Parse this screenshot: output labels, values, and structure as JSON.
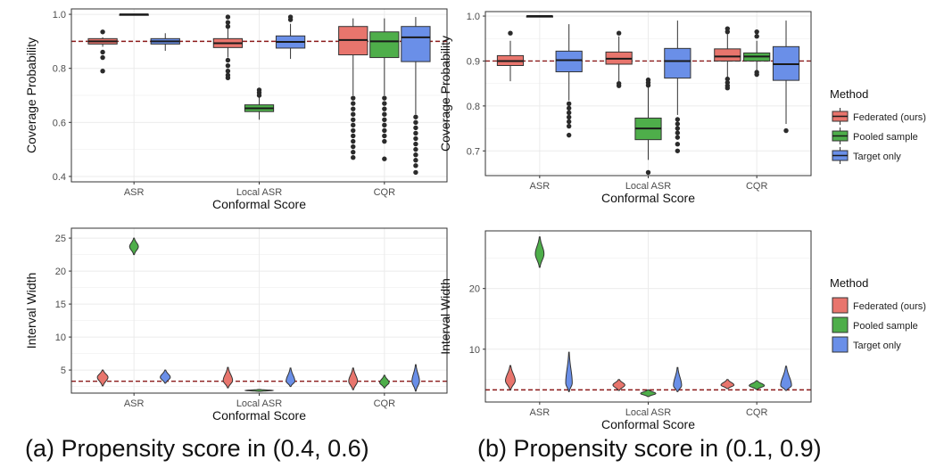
{
  "captions": {
    "a": "(a) Propensity score in (0.4, 0.6)",
    "b": "(b) Propensity score in (0.1, 0.9)"
  },
  "legend": {
    "title": "Method",
    "entries": [
      "Federated (ours)",
      "Pooled sample",
      "Target only"
    ],
    "colors": [
      "#E8756D",
      "#4EAE4A",
      "#6A8FE8"
    ]
  },
  "chart_data": [
    {
      "id": "a-coverage",
      "type": "box",
      "title": "",
      "xlabel": "Conformal Score",
      "ylabel": "Coverage Probability",
      "categories": [
        "ASR",
        "Local ASR",
        "CQR"
      ],
      "ylim": [
        0.38,
        1.02
      ],
      "yticks": [
        0.4,
        0.6,
        0.8,
        1.0
      ],
      "ytick_labels": [
        "0.4",
        "0.6",
        "0.8",
        "1.0"
      ],
      "reference_line": 0.9,
      "grid": true,
      "series": [
        {
          "name": "Federated (ours)",
          "boxes": [
            {
              "q1": 0.89,
              "median": 0.9,
              "q3": 0.91,
              "lo": 0.88,
              "hi": 0.915,
              "outliers": [
                0.935,
                0.86,
                0.84,
                0.79
              ]
            },
            {
              "q1": 0.877,
              "median": 0.893,
              "q3": 0.91,
              "lo": 0.84,
              "hi": 0.955,
              "outliers": [
                0.99,
                0.97,
                0.955,
                0.83,
                0.81,
                0.79,
                0.775,
                0.765
              ]
            },
            {
              "q1": 0.85,
              "median": 0.905,
              "q3": 0.955,
              "lo": 0.7,
              "hi": 0.985,
              "outliers": [
                0.69,
                0.67,
                0.65,
                0.63,
                0.61,
                0.59,
                0.57,
                0.55,
                0.53,
                0.51,
                0.49,
                0.47
              ]
            }
          ]
        },
        {
          "name": "Pooled sample",
          "boxes": [
            {
              "q1": 0.999,
              "median": 1.0,
              "q3": 1.0,
              "lo": 0.998,
              "hi": 1.0,
              "outliers": []
            },
            {
              "q1": 0.64,
              "median": 0.652,
              "q3": 0.665,
              "lo": 0.61,
              "hi": 0.695,
              "outliers": [
                0.72,
                0.71,
                0.7
              ]
            },
            {
              "q1": 0.84,
              "median": 0.9,
              "q3": 0.935,
              "lo": 0.7,
              "hi": 0.985,
              "outliers": [
                0.69,
                0.67,
                0.65,
                0.63,
                0.61,
                0.59,
                0.57,
                0.55,
                0.53,
                0.465
              ]
            }
          ]
        },
        {
          "name": "Target only",
          "boxes": [
            {
              "q1": 0.89,
              "median": 0.9,
              "q3": 0.91,
              "lo": 0.865,
              "hi": 0.93,
              "outliers": []
            },
            {
              "q1": 0.875,
              "median": 0.898,
              "q3": 0.92,
              "lo": 0.835,
              "hi": 0.965,
              "outliers": [
                0.99,
                0.98
              ]
            },
            {
              "q1": 0.825,
              "median": 0.915,
              "q3": 0.955,
              "lo": 0.63,
              "hi": 0.99,
              "outliers": [
                0.62,
                0.6,
                0.58,
                0.56,
                0.54,
                0.52,
                0.5,
                0.48,
                0.46,
                0.44,
                0.415
              ]
            }
          ]
        }
      ]
    },
    {
      "id": "b-coverage",
      "type": "box",
      "title": "",
      "xlabel": "Conformal Score",
      "ylabel": "Coverage Probability",
      "categories": [
        "ASR",
        "Local ASR",
        "CQR"
      ],
      "ylim": [
        0.645,
        1.01
      ],
      "yticks": [
        0.7,
        0.8,
        0.9,
        1.0
      ],
      "ytick_labels": [
        "0.7",
        "0.8",
        "0.9",
        "1.0"
      ],
      "reference_line": 0.9,
      "grid": true,
      "series": [
        {
          "name": "Federated (ours)",
          "boxes": [
            {
              "q1": 0.89,
              "median": 0.9,
              "q3": 0.912,
              "lo": 0.855,
              "hi": 0.945,
              "outliers": [
                0.962
              ]
            },
            {
              "q1": 0.893,
              "median": 0.905,
              "q3": 0.92,
              "lo": 0.855,
              "hi": 0.955,
              "outliers": [
                0.962,
                0.85,
                0.845
              ]
            },
            {
              "q1": 0.9,
              "median": 0.91,
              "q3": 0.927,
              "lo": 0.865,
              "hi": 0.96,
              "outliers": [
                0.972,
                0.965,
                0.86,
                0.852,
                0.845,
                0.84
              ]
            }
          ]
        },
        {
          "name": "Pooled sample",
          "boxes": [
            {
              "q1": 0.999,
              "median": 1.0,
              "q3": 1.0,
              "lo": 0.998,
              "hi": 1.0,
              "outliers": []
            },
            {
              "q1": 0.725,
              "median": 0.75,
              "q3": 0.773,
              "lo": 0.68,
              "hi": 0.845,
              "outliers": [
                0.858,
                0.852,
                0.846,
                0.652
              ]
            },
            {
              "q1": 0.9,
              "median": 0.91,
              "q3": 0.918,
              "lo": 0.88,
              "hi": 0.945,
              "outliers": [
                0.965,
                0.955,
                0.875,
                0.87
              ]
            }
          ]
        },
        {
          "name": "Target only",
          "boxes": [
            {
              "q1": 0.876,
              "median": 0.902,
              "q3": 0.922,
              "lo": 0.812,
              "hi": 0.982,
              "outliers": [
                0.805,
                0.795,
                0.785,
                0.775,
                0.765,
                0.755,
                0.735
              ]
            },
            {
              "q1": 0.862,
              "median": 0.9,
              "q3": 0.928,
              "lo": 0.78,
              "hi": 0.99,
              "outliers": [
                0.77,
                0.76,
                0.75,
                0.74,
                0.73,
                0.715,
                0.7
              ]
            },
            {
              "q1": 0.857,
              "median": 0.893,
              "q3": 0.932,
              "lo": 0.76,
              "hi": 0.99,
              "outliers": [
                0.745
              ]
            }
          ]
        }
      ]
    },
    {
      "id": "a-width",
      "type": "violin",
      "title": "",
      "xlabel": "Conformal Score",
      "ylabel": "Interval Width",
      "categories": [
        "ASR",
        "Local ASR",
        "CQR"
      ],
      "ylim": [
        1.5,
        26.5
      ],
      "yticks": [
        5,
        10,
        15,
        20,
        25
      ],
      "ytick_labels": [
        "5",
        "10",
        "15",
        "20",
        "25"
      ],
      "reference_line": 3.3,
      "grid": true,
      "series": [
        {
          "name": "Federated (ours)",
          "violins": [
            {
              "center": 3.9,
              "low": 2.6,
              "high": 5.0,
              "max_width": 0.085
            },
            {
              "center": 3.4,
              "low": 2.3,
              "high": 5.4,
              "max_width": 0.075
            },
            {
              "center": 3.3,
              "low": 2.0,
              "high": 5.3,
              "max_width": 0.07
            }
          ]
        },
        {
          "name": "Pooled sample",
          "violins": [
            {
              "center": 23.7,
              "low": 22.5,
              "high": 25.0,
              "max_width": 0.07
            },
            {
              "center": 1.9,
              "low": 1.75,
              "high": 2.05,
              "max_width": 0.22
            },
            {
              "center": 3.1,
              "low": 2.3,
              "high": 4.2,
              "max_width": 0.075
            }
          ]
        },
        {
          "name": "Target only",
          "violins": [
            {
              "center": 3.9,
              "low": 3.0,
              "high": 5.0,
              "max_width": 0.08
            },
            {
              "center": 3.3,
              "low": 2.5,
              "high": 5.3,
              "max_width": 0.07
            },
            {
              "center": 3.3,
              "low": 1.8,
              "high": 5.8,
              "max_width": 0.06
            }
          ]
        }
      ]
    },
    {
      "id": "b-width",
      "type": "violin",
      "title": "",
      "xlabel": "Conformal Score",
      "ylabel": "Interval Width",
      "categories": [
        "ASR",
        "Local ASR",
        "CQR"
      ],
      "ylim": [
        1.3,
        29.5
      ],
      "yticks": [
        10,
        20
      ],
      "ytick_labels": [
        "10",
        "20"
      ],
      "reference_line": 3.3,
      "grid": true,
      "series": [
        {
          "name": "Federated (ours)",
          "violins": [
            {
              "center": 4.8,
              "low": 3.3,
              "high": 7.3,
              "max_width": 0.09
            },
            {
              "center": 4.1,
              "low": 3.2,
              "high": 5.0,
              "max_width": 0.11
            },
            {
              "center": 4.1,
              "low": 3.5,
              "high": 5.0,
              "max_width": 0.12
            }
          ]
        },
        {
          "name": "Pooled sample",
          "violins": [
            {
              "center": 25.7,
              "low": 23.5,
              "high": 28.5,
              "max_width": 0.08
            },
            {
              "center": 2.7,
              "low": 2.2,
              "high": 3.3,
              "max_width": 0.14
            },
            {
              "center": 4.0,
              "low": 3.4,
              "high": 4.8,
              "max_width": 0.14
            }
          ]
        },
        {
          "name": "Target only",
          "violins": [
            {
              "center": 4.4,
              "low": 3.0,
              "high": 9.5,
              "max_width": 0.06
            },
            {
              "center": 4.0,
              "low": 3.0,
              "high": 7.0,
              "max_width": 0.075
            },
            {
              "center": 4.0,
              "low": 3.2,
              "high": 7.2,
              "max_width": 0.1
            }
          ]
        }
      ]
    }
  ]
}
